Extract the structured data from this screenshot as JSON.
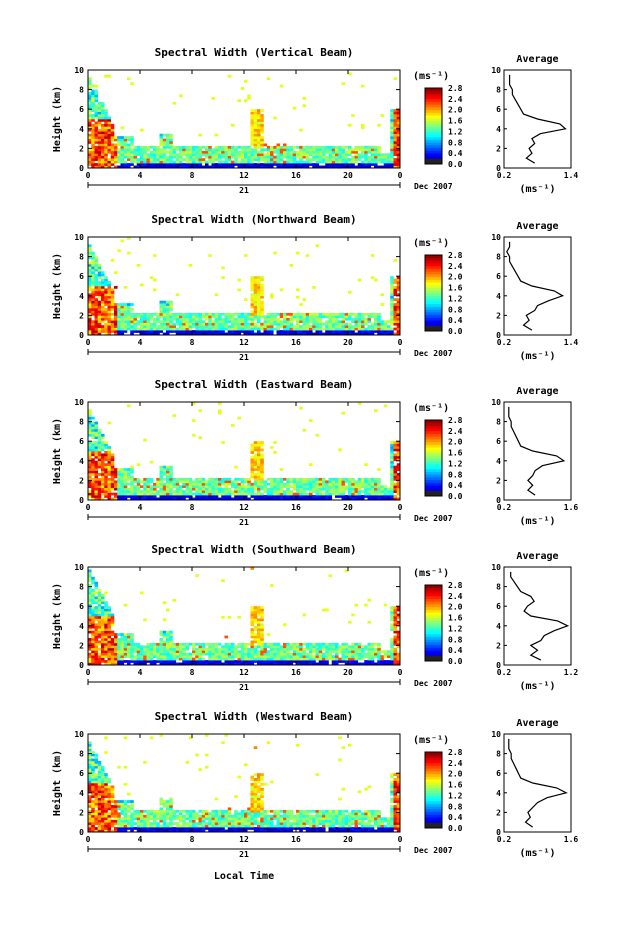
{
  "figure": {
    "date_label": "Dec 2007",
    "day_label": "21",
    "xlabel": "Local Time",
    "ylabel": "Height (km)",
    "unit_label": "(ms⁻¹)",
    "avg_title": "Average"
  },
  "chart_data": [
    {
      "type": "heatmap",
      "title": "Spectral Width (Vertical Beam)",
      "xlim": [
        0,
        24
      ],
      "ylim": [
        0,
        10
      ],
      "xticks": [
        "0",
        "4",
        "8",
        "12",
        "16",
        "20",
        "0"
      ],
      "yticks": [
        "0",
        "2",
        "4",
        "6",
        "8",
        "10"
      ],
      "colorbar": {
        "min": 0.0,
        "max": 2.8,
        "ticks": [
          "2.8",
          "2.4",
          "2.0",
          "1.6",
          "1.2",
          "0.8",
          "0.4",
          "0.0"
        ]
      },
      "profile": {
        "title": "Average",
        "xlim": [
          0.2,
          1.4
        ],
        "xticks": [
          "0.2",
          "1.4"
        ],
        "heights": [
          0.5,
          1,
          1.5,
          2,
          2.5,
          3,
          3.5,
          4,
          4.5,
          5,
          5.5,
          6,
          6.5,
          7,
          7.5,
          8,
          8.5,
          9,
          9.5
        ],
        "values": [
          0.75,
          0.6,
          0.7,
          0.65,
          0.75,
          0.7,
          0.85,
          1.3,
          1.2,
          0.8,
          0.55,
          0.5,
          0.45,
          0.4,
          0.35,
          0.35,
          0.3,
          0.3,
          0.3
        ]
      }
    },
    {
      "type": "heatmap",
      "title": "Spectral Width (Northward Beam)",
      "xlim": [
        0,
        24
      ],
      "ylim": [
        0,
        10
      ],
      "xticks": [
        "0",
        "4",
        "8",
        "12",
        "16",
        "20",
        "0"
      ],
      "yticks": [
        "0",
        "2",
        "4",
        "6",
        "8",
        "10"
      ],
      "colorbar": {
        "min": 0.0,
        "max": 2.8,
        "ticks": [
          "2.8",
          "2.4",
          "2.0",
          "1.6",
          "1.2",
          "0.8",
          "0.4",
          "0.0"
        ]
      },
      "profile": {
        "title": "Average",
        "xlim": [
          0.2,
          1.4
        ],
        "xticks": [
          "0.2",
          "1.4"
        ],
        "heights": [
          0.5,
          1,
          1.5,
          2,
          2.5,
          3,
          3.5,
          4,
          4.5,
          5,
          5.5,
          6,
          6.5,
          7,
          7.5,
          8,
          8.5,
          9,
          9.5
        ],
        "values": [
          0.7,
          0.55,
          0.65,
          0.6,
          0.75,
          0.8,
          1.0,
          1.25,
          1.1,
          0.7,
          0.5,
          0.45,
          0.4,
          0.35,
          0.3,
          0.3,
          0.25,
          0.3,
          0.3
        ]
      }
    },
    {
      "type": "heatmap",
      "title": "Spectral Width (Eastward Beam)",
      "xlim": [
        0,
        24
      ],
      "ylim": [
        0,
        10
      ],
      "xticks": [
        "0",
        "4",
        "8",
        "12",
        "16",
        "20",
        "0"
      ],
      "yticks": [
        "0",
        "2",
        "4",
        "6",
        "8",
        "10"
      ],
      "colorbar": {
        "min": 0.0,
        "max": 2.8,
        "ticks": [
          "2.8",
          "2.4",
          "2.0",
          "1.6",
          "1.2",
          "0.8",
          "0.4",
          "0.0"
        ]
      },
      "profile": {
        "title": "Average",
        "xlim": [
          0.2,
          1.6
        ],
        "xticks": [
          "0.2",
          "1.6"
        ],
        "heights": [
          0.5,
          1,
          1.5,
          2,
          2.5,
          3,
          3.5,
          4,
          4.5,
          5,
          5.5,
          6,
          6.5,
          7,
          7.5,
          8,
          8.5,
          9,
          9.5
        ],
        "values": [
          0.85,
          0.7,
          0.8,
          0.7,
          0.8,
          0.85,
          1.0,
          1.45,
          1.3,
          0.8,
          0.55,
          0.5,
          0.45,
          0.4,
          0.35,
          0.35,
          0.3,
          0.3,
          0.3
        ]
      }
    },
    {
      "type": "heatmap",
      "title": "Spectral Width (Southward Beam)",
      "xlim": [
        0,
        24
      ],
      "ylim": [
        0,
        10
      ],
      "xticks": [
        "0",
        "4",
        "8",
        "12",
        "16",
        "20",
        "0"
      ],
      "yticks": [
        "0",
        "2",
        "4",
        "6",
        "8",
        "10"
      ],
      "colorbar": {
        "min": 0.0,
        "max": 2.8,
        "ticks": [
          "2.8",
          "2.4",
          "2.0",
          "1.6",
          "1.2",
          "0.8",
          "0.4",
          "0.0"
        ]
      },
      "profile": {
        "title": "Average",
        "xlim": [
          0.2,
          1.2
        ],
        "xticks": [
          "0.2",
          "1.2"
        ],
        "heights": [
          0.5,
          1,
          1.5,
          2,
          2.5,
          3,
          3.5,
          4,
          4.5,
          5,
          5.5,
          6,
          6.5,
          7,
          7.5,
          8,
          8.5,
          9,
          9.5
        ],
        "values": [
          0.75,
          0.6,
          0.7,
          0.6,
          0.75,
          0.8,
          0.95,
          1.15,
          1.0,
          0.6,
          0.5,
          0.55,
          0.65,
          0.6,
          0.45,
          0.4,
          0.35,
          0.3,
          0.3
        ]
      }
    },
    {
      "type": "heatmap",
      "title": "Spectral Width (Westward Beam)",
      "xlim": [
        0,
        24
      ],
      "ylim": [
        0,
        10
      ],
      "xticks": [
        "0",
        "4",
        "8",
        "12",
        "16",
        "20",
        "0"
      ],
      "yticks": [
        "0",
        "2",
        "4",
        "6",
        "8",
        "10"
      ],
      "colorbar": {
        "min": 0.0,
        "max": 2.8,
        "ticks": [
          "2.8",
          "2.4",
          "2.0",
          "1.6",
          "1.2",
          "0.8",
          "0.4",
          "0.0"
        ]
      },
      "profile": {
        "title": "Average",
        "xlim": [
          0.2,
          1.6
        ],
        "xticks": [
          "0.2",
          "1.6"
        ],
        "heights": [
          0.5,
          1,
          1.5,
          2,
          2.5,
          3,
          3.5,
          4,
          4.5,
          5,
          5.5,
          6,
          6.5,
          7,
          7.5,
          8,
          8.5,
          9,
          9.5
        ],
        "values": [
          0.8,
          0.65,
          0.75,
          0.7,
          0.8,
          0.9,
          1.1,
          1.5,
          1.3,
          0.8,
          0.55,
          0.5,
          0.45,
          0.4,
          0.35,
          0.35,
          0.3,
          0.3,
          0.3
        ]
      }
    }
  ]
}
